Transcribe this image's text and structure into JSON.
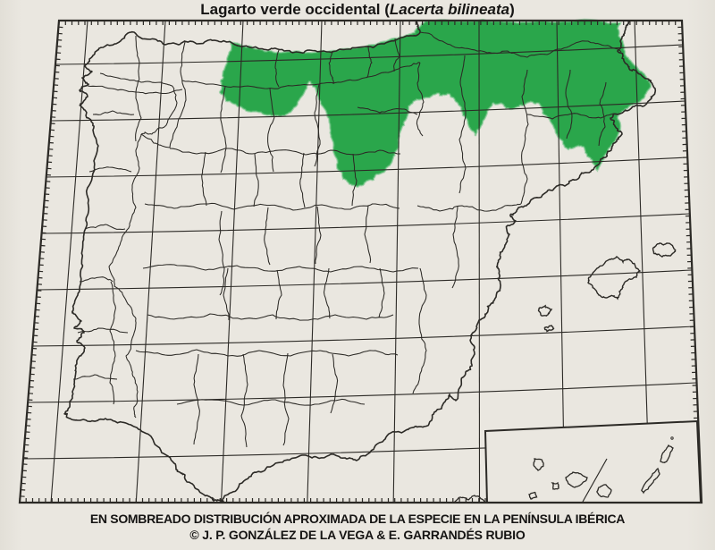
{
  "title": {
    "prefix": "Lagarto verde occidental (",
    "species": "Lacerta bilineata",
    "suffix": ")"
  },
  "caption": {
    "line1": "EN SOMBREADO DISTRIBUCIÓN APROXIMADA DE LA ESPECIE EN LA PENÍNSULA IBÉRICA",
    "line2": "© J. P. GONZÁLEZ DE LA VEGA & E. GARRANDÉS RUBIO"
  },
  "map": {
    "shaded_meaning": "Distribución aproximada de la especie",
    "region": "Península Ibérica",
    "inset_region": "Islas Canarias",
    "colors": {
      "shaded": "#2aa64b",
      "shaded_halo": "#6cc284",
      "lines": "#2c2a26",
      "paper": "#eae7e0"
    }
  }
}
